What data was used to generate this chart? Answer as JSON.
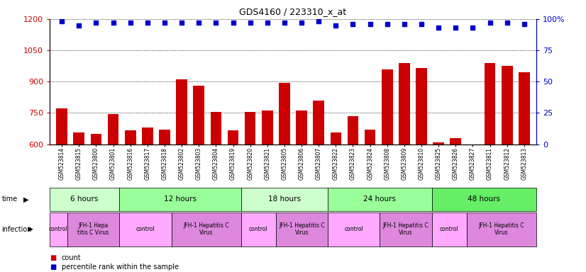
{
  "title": "GDS4160 / 223310_x_at",
  "samples": [
    "GSM523814",
    "GSM523815",
    "GSM523800",
    "GSM523801",
    "GSM523816",
    "GSM523817",
    "GSM523818",
    "GSM523802",
    "GSM523803",
    "GSM523804",
    "GSM523819",
    "GSM523820",
    "GSM523821",
    "GSM523805",
    "GSM523806",
    "GSM523807",
    "GSM523822",
    "GSM523823",
    "GSM523824",
    "GSM523808",
    "GSM523809",
    "GSM523810",
    "GSM523825",
    "GSM523826",
    "GSM523827",
    "GSM523811",
    "GSM523812",
    "GSM523813"
  ],
  "counts": [
    770,
    655,
    650,
    745,
    665,
    680,
    670,
    910,
    880,
    755,
    665,
    755,
    760,
    895,
    760,
    810,
    655,
    735,
    670,
    960,
    990,
    965,
    610,
    630,
    600,
    990,
    975,
    945
  ],
  "percentiles": [
    98,
    95,
    97,
    97,
    97,
    97,
    97,
    97,
    97,
    97,
    97,
    97,
    97,
    97,
    97,
    98,
    95,
    96,
    96,
    96,
    96,
    96,
    93,
    93,
    93,
    97,
    97,
    96
  ],
  "ylim_left": [
    600,
    1200
  ],
  "ylim_right": [
    0,
    100
  ],
  "yticks_left": [
    600,
    750,
    900,
    1050,
    1200
  ],
  "yticks_right": [
    0,
    25,
    50,
    75,
    100
  ],
  "bar_color": "#cc0000",
  "dot_color": "#0000cc",
  "time_groups": [
    {
      "label": "6 hours",
      "start": 0,
      "end": 4,
      "color": "#ccffcc"
    },
    {
      "label": "12 hours",
      "start": 4,
      "end": 11,
      "color": "#99ff99"
    },
    {
      "label": "18 hours",
      "start": 11,
      "end": 16,
      "color": "#ccffcc"
    },
    {
      "label": "24 hours",
      "start": 16,
      "end": 22,
      "color": "#99ff99"
    },
    {
      "label": "48 hours",
      "start": 22,
      "end": 28,
      "color": "#66ee66"
    }
  ],
  "infection_groups": [
    {
      "label": "control",
      "start": 0,
      "end": 1,
      "color": "#ffaaff"
    },
    {
      "label": "JFH-1 Hepa\ntitis C Virus",
      "start": 1,
      "end": 4,
      "color": "#dd88dd"
    },
    {
      "label": "control",
      "start": 4,
      "end": 7,
      "color": "#ffaaff"
    },
    {
      "label": "JFH-1 Hepatitis C\nVirus",
      "start": 7,
      "end": 11,
      "color": "#dd88dd"
    },
    {
      "label": "control",
      "start": 11,
      "end": 13,
      "color": "#ffaaff"
    },
    {
      "label": "JFH-1 Hepatitis C\nVirus",
      "start": 13,
      "end": 16,
      "color": "#dd88dd"
    },
    {
      "label": "control",
      "start": 16,
      "end": 19,
      "color": "#ffaaff"
    },
    {
      "label": "JFH-1 Hepatitis C\nVirus",
      "start": 19,
      "end": 22,
      "color": "#dd88dd"
    },
    {
      "label": "control",
      "start": 22,
      "end": 24,
      "color": "#ffaaff"
    },
    {
      "label": "JFH-1 Hepatitis C\nVirus",
      "start": 24,
      "end": 28,
      "color": "#dd88dd"
    }
  ],
  "legend_count_label": "count",
  "legend_pct_label": "percentile rank within the sample",
  "bg_color": "#ffffff"
}
